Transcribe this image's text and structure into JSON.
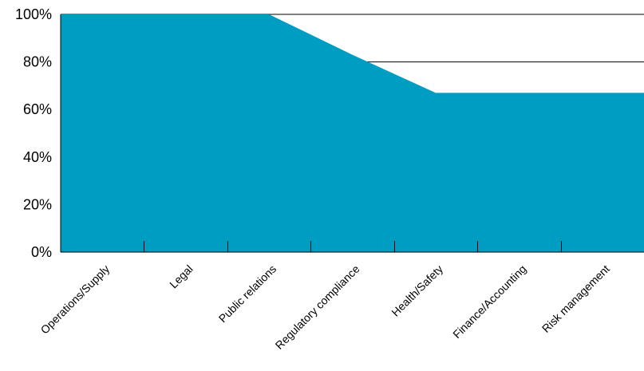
{
  "chart_data": {
    "type": "area",
    "title": "",
    "xlabel": "",
    "ylabel": "",
    "categories": [
      "Operations/Supply",
      "Legal",
      "Public relations",
      "Regulatory compliance",
      "Health/Safety",
      "Finance/Accounting",
      "Risk management"
    ],
    "values": [
      100,
      100,
      100,
      83,
      67,
      67,
      67
    ],
    "ylim": [
      0,
      100
    ],
    "y_ticks": [
      0,
      20,
      40,
      60,
      80,
      100
    ],
    "y_tick_labels": [
      "0%",
      "20%",
      "40%",
      "60%",
      "80%",
      "100%"
    ],
    "gridlines": true,
    "legend": "none",
    "colors": {
      "area_fill": "#009dc3",
      "grid": "#000000",
      "axis": "#000000",
      "text": "#000000"
    }
  }
}
